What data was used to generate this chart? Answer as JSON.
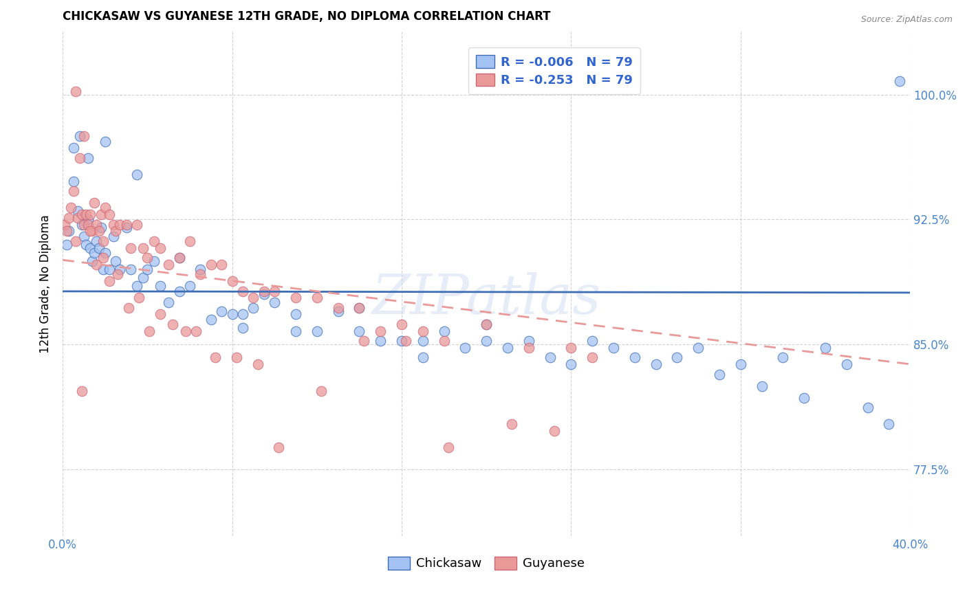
{
  "title": "CHICKASAW VS GUYANESE 12TH GRADE, NO DIPLOMA CORRELATION CHART",
  "source": "Source: ZipAtlas.com",
  "ylabel_label": "12th Grade, No Diploma",
  "xmin": 0.0,
  "xmax": 0.4,
  "ymin": 0.735,
  "ymax": 1.038,
  "chickasaw_R": "-0.006",
  "chickasaw_N": "79",
  "guyanese_R": "-0.253",
  "guyanese_N": "79",
  "chickasaw_color": "#a4c2f4",
  "guyanese_color": "#ea9999",
  "chickasaw_line_color": "#3d6db5",
  "guyanese_line_color": "#cc6677",
  "watermark": "ZIPatlas",
  "legend_label_1": "Chickasaw",
  "legend_label_2": "Guyanese",
  "y_tick_vals": [
    0.775,
    0.85,
    0.925,
    1.0
  ],
  "y_tick_labels": [
    "77.5%",
    "85.0%",
    "92.5%",
    "100.0%"
  ],
  "x_tick_vals": [
    0.0,
    0.08,
    0.16,
    0.24,
    0.32,
    0.4
  ],
  "x_tick_labels": [
    "0.0%",
    "",
    "",
    "",
    "",
    "40.0%"
  ],
  "chickasaw_x": [
    0.002,
    0.003,
    0.005,
    0.007,
    0.008,
    0.009,
    0.01,
    0.011,
    0.012,
    0.013,
    0.014,
    0.015,
    0.016,
    0.017,
    0.018,
    0.019,
    0.02,
    0.022,
    0.024,
    0.025,
    0.027,
    0.03,
    0.032,
    0.035,
    0.038,
    0.04,
    0.043,
    0.046,
    0.05,
    0.055,
    0.06,
    0.065,
    0.07,
    0.075,
    0.08,
    0.085,
    0.09,
    0.095,
    0.1,
    0.11,
    0.12,
    0.13,
    0.14,
    0.15,
    0.16,
    0.17,
    0.18,
    0.19,
    0.2,
    0.21,
    0.22,
    0.23,
    0.24,
    0.25,
    0.26,
    0.27,
    0.28,
    0.29,
    0.3,
    0.31,
    0.32,
    0.33,
    0.34,
    0.35,
    0.36,
    0.37,
    0.38,
    0.39,
    0.395,
    0.2,
    0.17,
    0.14,
    0.11,
    0.085,
    0.055,
    0.035,
    0.02,
    0.012,
    0.005
  ],
  "chickasaw_y": [
    0.91,
    0.918,
    0.968,
    0.93,
    0.975,
    0.922,
    0.915,
    0.91,
    0.925,
    0.908,
    0.9,
    0.905,
    0.912,
    0.908,
    0.92,
    0.895,
    0.905,
    0.895,
    0.915,
    0.9,
    0.895,
    0.92,
    0.895,
    0.885,
    0.89,
    0.895,
    0.9,
    0.885,
    0.875,
    0.882,
    0.885,
    0.895,
    0.865,
    0.87,
    0.868,
    0.86,
    0.872,
    0.88,
    0.875,
    0.868,
    0.858,
    0.87,
    0.858,
    0.852,
    0.852,
    0.842,
    0.858,
    0.848,
    0.862,
    0.848,
    0.852,
    0.842,
    0.838,
    0.852,
    0.848,
    0.842,
    0.838,
    0.842,
    0.848,
    0.832,
    0.838,
    0.825,
    0.842,
    0.818,
    0.848,
    0.838,
    0.812,
    0.802,
    1.008,
    0.852,
    0.852,
    0.872,
    0.858,
    0.868,
    0.902,
    0.952,
    0.972,
    0.962,
    0.948
  ],
  "guyanese_x": [
    0.001,
    0.002,
    0.003,
    0.004,
    0.005,
    0.006,
    0.007,
    0.008,
    0.009,
    0.01,
    0.01,
    0.011,
    0.012,
    0.013,
    0.014,
    0.015,
    0.016,
    0.017,
    0.018,
    0.019,
    0.02,
    0.022,
    0.024,
    0.025,
    0.027,
    0.03,
    0.032,
    0.035,
    0.038,
    0.04,
    0.043,
    0.046,
    0.05,
    0.055,
    0.06,
    0.065,
    0.07,
    0.075,
    0.08,
    0.085,
    0.09,
    0.095,
    0.1,
    0.11,
    0.12,
    0.13,
    0.14,
    0.15,
    0.16,
    0.17,
    0.18,
    0.2,
    0.22,
    0.24,
    0.25,
    0.006,
    0.009,
    0.013,
    0.016,
    0.019,
    0.022,
    0.026,
    0.031,
    0.036,
    0.041,
    0.046,
    0.052,
    0.058,
    0.063,
    0.072,
    0.082,
    0.092,
    0.102,
    0.122,
    0.142,
    0.162,
    0.182,
    0.212,
    0.232
  ],
  "guyanese_y": [
    0.922,
    0.918,
    0.926,
    0.932,
    0.942,
    1.002,
    0.926,
    0.962,
    0.928,
    0.922,
    0.975,
    0.928,
    0.922,
    0.928,
    0.918,
    0.935,
    0.922,
    0.918,
    0.928,
    0.912,
    0.932,
    0.928,
    0.922,
    0.918,
    0.922,
    0.922,
    0.908,
    0.922,
    0.908,
    0.902,
    0.912,
    0.908,
    0.898,
    0.902,
    0.912,
    0.892,
    0.898,
    0.898,
    0.888,
    0.882,
    0.878,
    0.882,
    0.882,
    0.878,
    0.878,
    0.872,
    0.872,
    0.858,
    0.862,
    0.858,
    0.852,
    0.862,
    0.848,
    0.848,
    0.842,
    0.912,
    0.822,
    0.918,
    0.898,
    0.902,
    0.888,
    0.892,
    0.872,
    0.878,
    0.858,
    0.868,
    0.862,
    0.858,
    0.858,
    0.842,
    0.842,
    0.838,
    0.788,
    0.822,
    0.852,
    0.852,
    0.788,
    0.802,
    0.798
  ]
}
